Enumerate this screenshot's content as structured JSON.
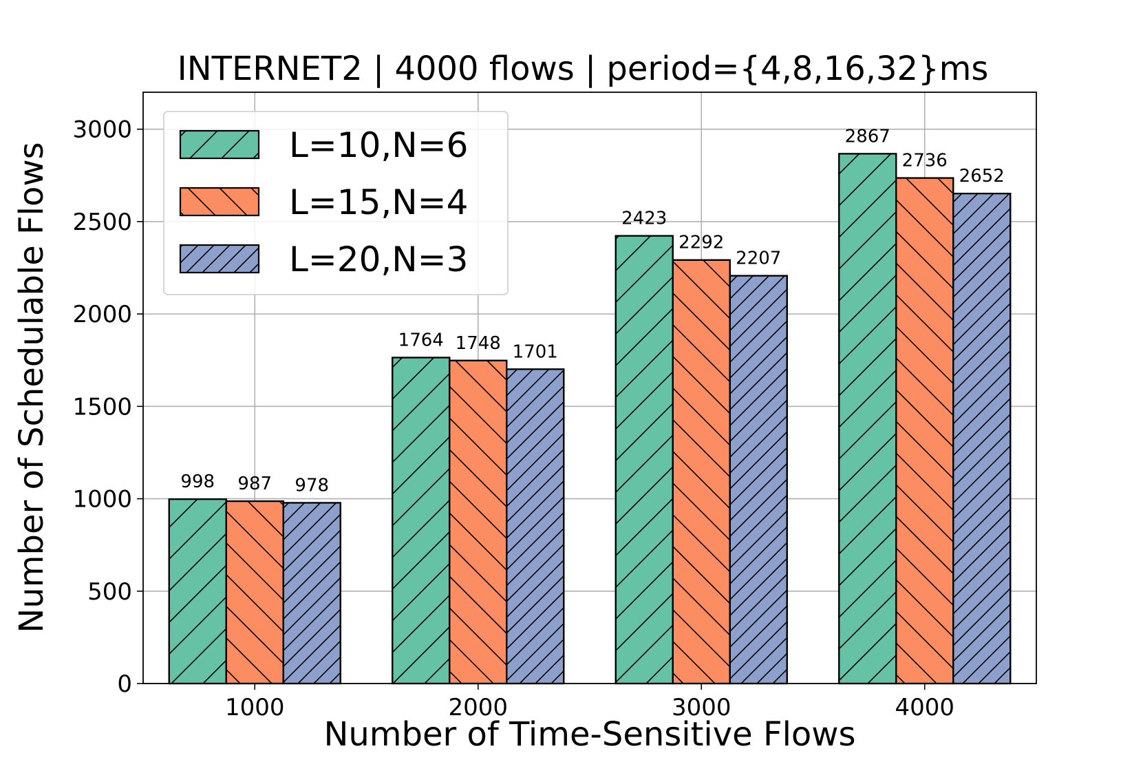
{
  "chart_data": {
    "type": "bar",
    "title": "INTERNET2 | 4000 flows | period={4,8,16,32}ms",
    "xlabel": "Number of Time-Sensitive Flows",
    "ylabel": "Number of Schedulable Flows",
    "categories": [
      "1000",
      "2000",
      "3000",
      "4000"
    ],
    "ylim": [
      0,
      3200
    ],
    "yticks": [
      0,
      500,
      1000,
      1500,
      2000,
      2500,
      3000
    ],
    "grid": true,
    "legend_position": "top-left",
    "series": [
      {
        "name": "L=10,N=6",
        "values": [
          998,
          1764,
          2423,
          2867
        ],
        "color": "#66c2a5",
        "hatch": "forward-diagonal-wide"
      },
      {
        "name": "L=15,N=4",
        "values": [
          987,
          1748,
          2292,
          2736
        ],
        "color": "#fc8d62",
        "hatch": "back-diagonal-wide"
      },
      {
        "name": "L=20,N=3",
        "values": [
          978,
          1701,
          2207,
          2652
        ],
        "color": "#8da0cb",
        "hatch": "forward-diagonal-dense"
      }
    ]
  }
}
